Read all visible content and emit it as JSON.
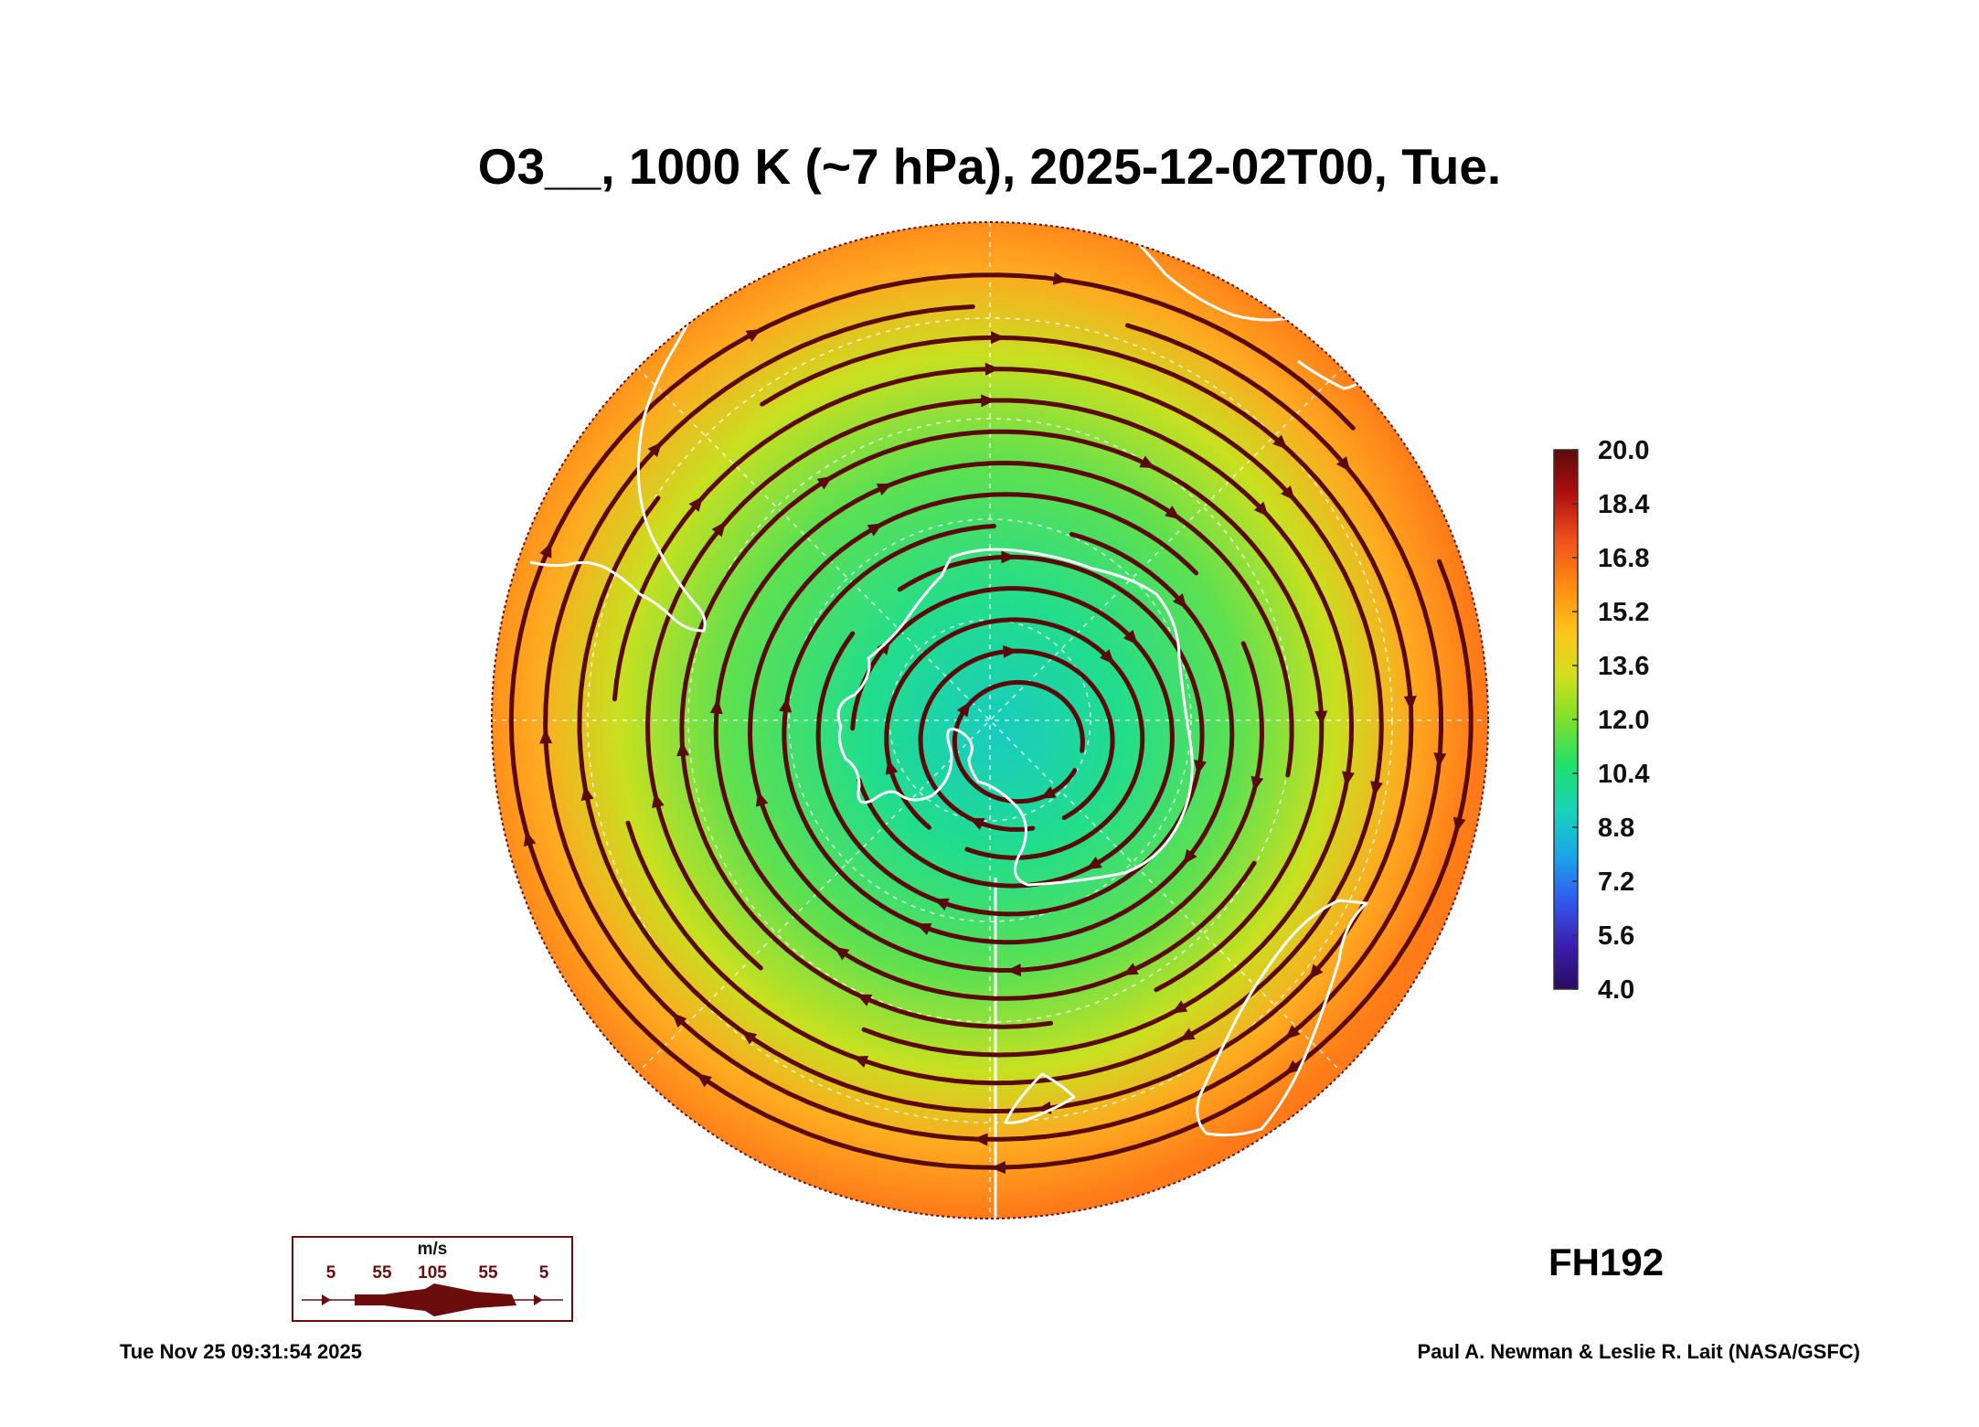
{
  "title": "O3__, 1000 K (~7 hPa), 2025-12-02T00, Tue.",
  "forecast_hour": "FH192",
  "footer": {
    "timestamp": "Tue Nov 25 09:31:54 2025",
    "credit": "Paul A. Newman & Leslie R. Lait (NASA/GSFC)"
  },
  "colorbar": {
    "labels": [
      "20.0",
      "18.4",
      "16.8",
      "15.2",
      "13.6",
      "12.0",
      "10.4",
      "8.8",
      "7.2",
      "5.6",
      "4.0"
    ],
    "min": 4.0,
    "max": 20.0,
    "colors": [
      "#2a0a5e",
      "#3b1fb0",
      "#2f5cf0",
      "#1aa8e8",
      "#18d4b8",
      "#22e06a",
      "#7ee02a",
      "#d2e01e",
      "#ffc21a",
      "#ff8a10",
      "#f0501c",
      "#b01010",
      "#5c0a0a"
    ]
  },
  "wind_legend": {
    "unit": "m/s",
    "speeds": [
      "5",
      "55",
      "105",
      "55",
      "5"
    ]
  },
  "map": {
    "projection": "south polar stereographic",
    "field_colors": {
      "center": "#18ccc0",
      "inner": "#22dd8c",
      "middle": "#5ee050",
      "yellow": "#c8e020",
      "orange": "#ffa820",
      "edge": "#ff7a18"
    },
    "streamline_color": "#5a0a0a",
    "coastline_color": "#ffffff"
  }
}
